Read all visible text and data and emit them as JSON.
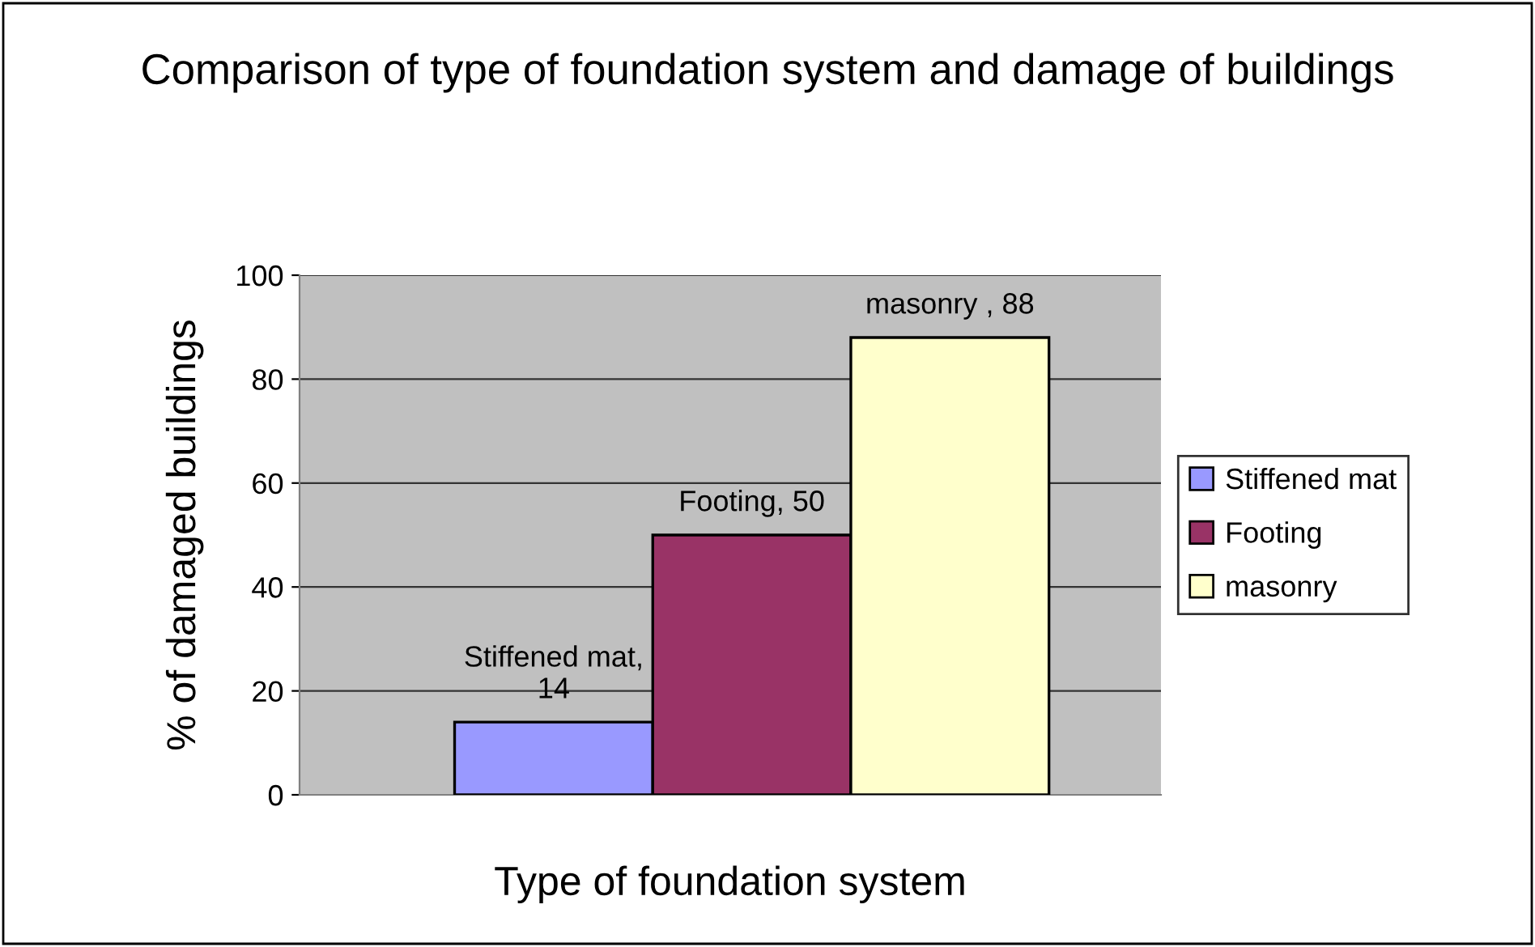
{
  "chart_data": {
    "type": "bar",
    "title": "Comparison of type of foundation system and damage of buildings",
    "xlabel": "Type of foundation system",
    "ylabel": "% of damaged buildings",
    "categories": [
      null
    ],
    "series": [
      {
        "name": "Stiffened mat",
        "color": "#9999ff",
        "values": [
          14
        ],
        "value_labels": [
          "Stiffened mat,\n14"
        ]
      },
      {
        "name": "Footing",
        "color": "#993366",
        "values": [
          50
        ],
        "value_labels": [
          "Footing, 50"
        ]
      },
      {
        "name": "masonry",
        "color": "#ffffcc",
        "values": [
          88
        ],
        "value_labels": [
          "masonry , 88"
        ]
      }
    ],
    "ylim": [
      0,
      100
    ],
    "yticks": [
      0,
      20,
      40,
      60,
      80,
      100
    ],
    "grid": "y",
    "legend": "right"
  }
}
